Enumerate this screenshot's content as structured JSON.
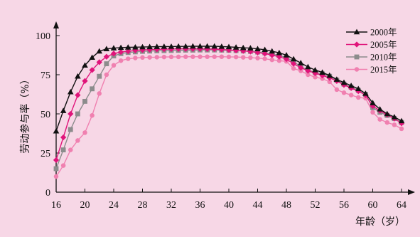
{
  "chart_data": {
    "type": "line",
    "title": "",
    "xlabel": "年龄（岁）",
    "ylabel": "劳动参与率（%）",
    "xlim": [
      16,
      64
    ],
    "ylim": [
      0,
      100
    ],
    "xticks": [
      "16",
      "20",
      "24",
      "28",
      "32",
      "36",
      "40",
      "44",
      "48",
      "52",
      "56",
      "60",
      "64"
    ],
    "yticks": [
      "0",
      "25",
      "50",
      "75",
      "100"
    ],
    "grid": false,
    "legend_position": "top-right",
    "x": [
      16,
      17,
      18,
      19,
      20,
      21,
      22,
      23,
      24,
      25,
      26,
      27,
      28,
      29,
      30,
      31,
      32,
      33,
      34,
      35,
      36,
      37,
      38,
      39,
      40,
      41,
      42,
      43,
      44,
      45,
      46,
      47,
      48,
      49,
      50,
      51,
      52,
      53,
      54,
      55,
      56,
      57,
      58,
      59,
      60,
      61,
      62,
      63,
      64
    ],
    "series": [
      {
        "name": "2000年",
        "color": "#111111",
        "marker": "triangle",
        "values": [
          39,
          52,
          64,
          74,
          81,
          86,
          90,
          91.5,
          92,
          92.3,
          92.5,
          92.6,
          92.7,
          92.8,
          92.9,
          93,
          93,
          93.1,
          93.1,
          93.2,
          93.2,
          93.2,
          93.2,
          93,
          92.8,
          92.5,
          92.2,
          92,
          91.5,
          91,
          90,
          89,
          87.5,
          85,
          82.5,
          80,
          78,
          76.5,
          74.5,
          72,
          70,
          68,
          66,
          63,
          57,
          53,
          50,
          48,
          45.5
        ]
      },
      {
        "name": "2005年",
        "color": "#e0147a",
        "marker": "diamond",
        "values": [
          20.5,
          35,
          50,
          62,
          71,
          78,
          83,
          86.5,
          88.5,
          89.5,
          90,
          90.5,
          90.8,
          91,
          91.2,
          91.3,
          91.4,
          91.5,
          91.5,
          91.5,
          91.5,
          91.4,
          91.3,
          91.1,
          90.8,
          90.5,
          90.2,
          89.8,
          89.2,
          88.5,
          87.5,
          86.5,
          85,
          82,
          79.5,
          77.5,
          76,
          74.5,
          73,
          71,
          68.5,
          66.5,
          64.5,
          62,
          55,
          52,
          49.5,
          47,
          44
        ]
      },
      {
        "name": "2010年",
        "color": "#8c8c8c",
        "marker": "square",
        "values": [
          15,
          27,
          40,
          50,
          58,
          66,
          74,
          82,
          87,
          88.5,
          89.2,
          89.6,
          89.9,
          90.1,
          90.3,
          90.4,
          90.5,
          90.6,
          90.7,
          90.7,
          90.8,
          90.8,
          90.8,
          90.7,
          90.6,
          90.4,
          90.2,
          89.9,
          89.5,
          89,
          88.2,
          87.3,
          86,
          83.5,
          80,
          78,
          76.5,
          75.5,
          74,
          71.5,
          69,
          67,
          65,
          62.5,
          54,
          51,
          49,
          47,
          44.5
        ]
      },
      {
        "name": "2015年",
        "color": "#f080b0",
        "marker": "circle",
        "values": [
          10,
          17,
          27,
          33,
          38,
          49,
          63,
          75,
          81,
          84,
          85.2,
          85.7,
          86,
          86.1,
          86.2,
          86.3,
          86.4,
          86.4,
          86.5,
          86.5,
          86.5,
          86.5,
          86.5,
          86.5,
          86.4,
          86.3,
          86.1,
          85.9,
          85.6,
          85.2,
          84.5,
          84,
          83.5,
          79,
          77.5,
          75,
          73.5,
          72.5,
          70.5,
          65.5,
          63.5,
          62,
          60.5,
          60,
          51,
          46.5,
          44.5,
          43,
          40.5
        ]
      }
    ]
  }
}
